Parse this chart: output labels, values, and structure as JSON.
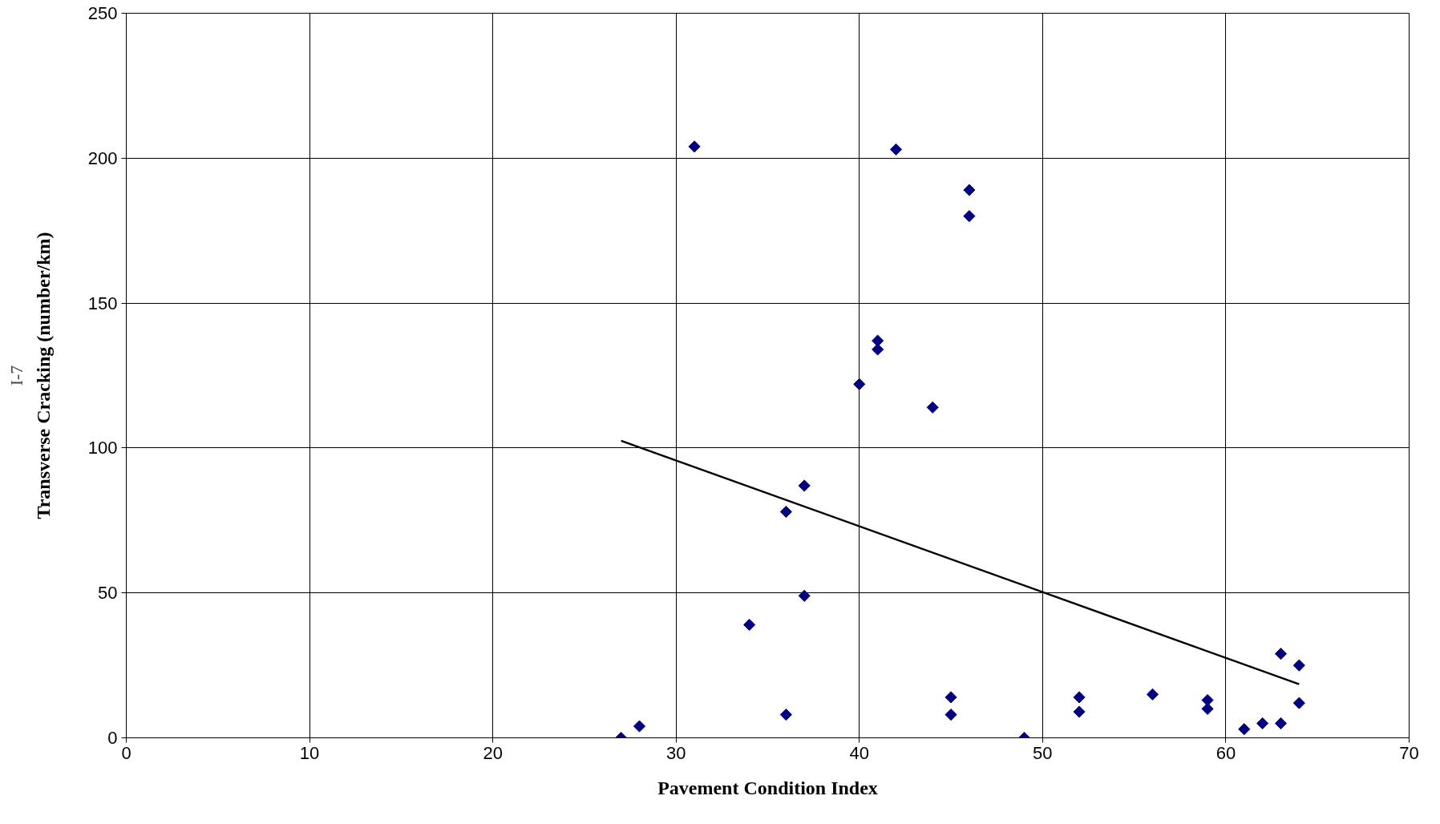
{
  "chart_data": {
    "type": "scatter",
    "xlabel": "Pavement Condition Index",
    "ylabel": "Transverse Cracking (number/km)",
    "annotations": [
      "I-7"
    ],
    "xlim": [
      0,
      70
    ],
    "xticks": [
      0,
      10,
      20,
      30,
      40,
      50,
      60,
      70
    ],
    "ylim": [
      0,
      250
    ],
    "yticks": [
      0,
      50,
      100,
      150,
      200,
      250
    ],
    "grid": true,
    "marker": "diamond",
    "series": [
      {
        "color": "#000080",
        "x": [
          27,
          28,
          31,
          34,
          36,
          36,
          37,
          37,
          40,
          41,
          41,
          42,
          44,
          45,
          45,
          46,
          46,
          49,
          52,
          52,
          56,
          59,
          59,
          61,
          62,
          63,
          63,
          64,
          64
        ],
        "values": [
          0,
          4,
          204,
          39,
          78,
          8,
          87,
          49,
          122,
          137,
          134,
          203,
          114,
          14,
          8,
          189,
          180,
          0,
          14,
          9,
          15,
          13,
          10,
          3,
          5,
          5,
          29,
          25,
          12
        ]
      },
      {
        "type": "line",
        "marker": "none",
        "color": "#000000",
        "x": [
          27,
          64
        ],
        "values": [
          102.5,
          18.5
        ]
      }
    ]
  }
}
